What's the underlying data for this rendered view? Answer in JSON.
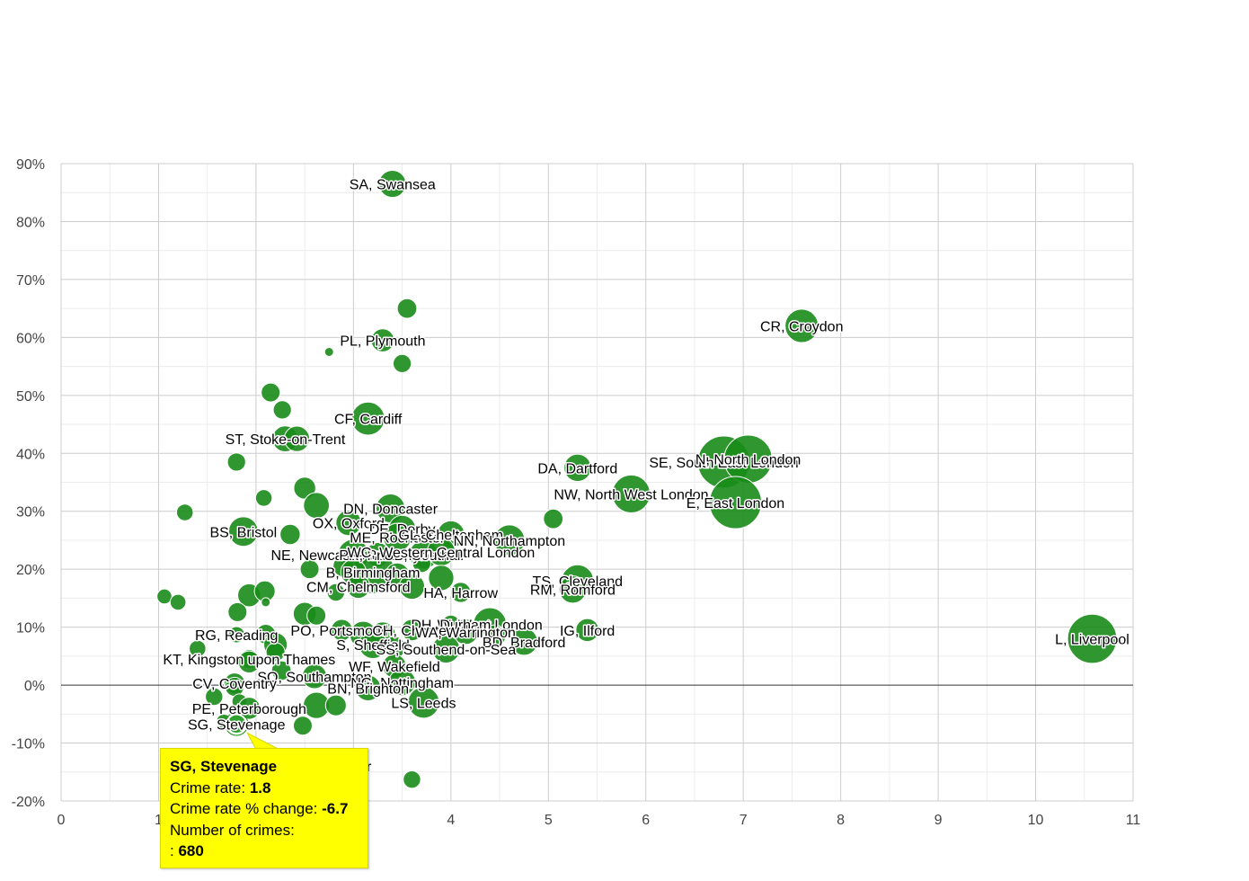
{
  "colors": {
    "bubble": "#1a8c1a",
    "bubble_stroke": "#ffffff",
    "highlight": "#2ea02e",
    "tooltip_bg": "#ffff00",
    "grid_major": "#cccccc",
    "grid_minor": "#ececec",
    "zero_line": "#333333"
  },
  "chart_data": {
    "type": "scatter",
    "title": "",
    "xlabel": "",
    "ylabel": "",
    "xlim": [
      0,
      11
    ],
    "ylim": [
      -20,
      90
    ],
    "x_ticks": [
      "0",
      "1",
      "2",
      "3",
      "4",
      "5",
      "6",
      "7",
      "8",
      "9",
      "10",
      "11"
    ],
    "y_ticks": [
      "-20%",
      "-10%",
      "0%",
      "10%",
      "20%",
      "30%",
      "40%",
      "50%",
      "60%",
      "70%",
      "80%",
      "90%"
    ],
    "grid": true,
    "size_meaning": "Number of crimes",
    "points": [
      {
        "label": "SA, Swansea",
        "x": 3.4,
        "y": 86.5,
        "size": 2600
      },
      {
        "label": "",
        "x": 3.55,
        "y": 65,
        "size": 1100
      },
      {
        "label": "CR, Croydon",
        "x": 7.6,
        "y": 62,
        "size": 4300
      },
      {
        "label": "PL, Plymouth",
        "x": 3.3,
        "y": 59.5,
        "size": 1700
      },
      {
        "label": "",
        "x": 2.75,
        "y": 57.5,
        "size": 250
      },
      {
        "label": "",
        "x": 3.5,
        "y": 55.5,
        "size": 900
      },
      {
        "label": "",
        "x": 2.15,
        "y": 50.5,
        "size": 1000
      },
      {
        "label": "",
        "x": 2.27,
        "y": 47.5,
        "size": 900
      },
      {
        "label": "CF, Cardiff",
        "x": 3.15,
        "y": 46,
        "size": 4200
      },
      {
        "label": "ST, Stoke-on-Trent",
        "x": 2.3,
        "y": 42.5,
        "size": 2300
      },
      {
        "label": "",
        "x": 2.42,
        "y": 42.5,
        "size": 2200
      },
      {
        "label": "",
        "x": 1.8,
        "y": 38.5,
        "size": 900
      },
      {
        "label": "DA, Dartford",
        "x": 5.3,
        "y": 37.5,
        "size": 2600
      },
      {
        "label": "SE, South East London",
        "x": 6.8,
        "y": 38.5,
        "size": 12000
      },
      {
        "label": "N, North London",
        "x": 7.05,
        "y": 39,
        "size": 10000
      },
      {
        "label": "NW, North West London",
        "x": 5.85,
        "y": 33,
        "size": 5800
      },
      {
        "label": "E, East London",
        "x": 6.92,
        "y": 31.5,
        "size": 12000
      },
      {
        "label": "",
        "x": 2.5,
        "y": 34,
        "size": 1500
      },
      {
        "label": "",
        "x": 2.08,
        "y": 32.3,
        "size": 700
      },
      {
        "label": "",
        "x": 2.62,
        "y": 31,
        "size": 2300
      },
      {
        "label": "DN, Doncaster",
        "x": 3.38,
        "y": 30.5,
        "size": 3000
      },
      {
        "label": "",
        "x": 1.27,
        "y": 29.8,
        "size": 700
      },
      {
        "label": "",
        "x": 5.05,
        "y": 28.7,
        "size": 1100
      },
      {
        "label": "OX, Oxford",
        "x": 2.95,
        "y": 28,
        "size": 2200
      },
      {
        "label": "DE, Derby",
        "x": 3.5,
        "y": 27,
        "size": 2500
      },
      {
        "label": "BS, Bristol",
        "x": 1.87,
        "y": 26.5,
        "size": 3200
      },
      {
        "label": "",
        "x": 2.35,
        "y": 26,
        "size": 1200
      },
      {
        "label": "ME, Rochester",
        "x": 3.45,
        "y": 25.5,
        "size": 2800
      },
      {
        "label": "GL, Cheltenham",
        "x": 4.0,
        "y": 26,
        "size": 2600
      },
      {
        "label": "NN, Northampton",
        "x": 4.6,
        "y": 25,
        "size": 3500
      },
      {
        "label": "NE, Newcastle upon Tyne",
        "x": 3.0,
        "y": 22.5,
        "size": 3600
      },
      {
        "label": "PR, Preston",
        "x": 3.25,
        "y": 22.5,
        "size": 2000
      },
      {
        "label": "UB, Southall",
        "x": 3.72,
        "y": 22.5,
        "size": 3000
      },
      {
        "label": "WC, Western Central London",
        "x": 3.9,
        "y": 23,
        "size": 2800
      },
      {
        "label": "",
        "x": 3.7,
        "y": 21,
        "size": 900
      },
      {
        "label": "B, Birmingham",
        "x": 3.2,
        "y": 19.5,
        "size": 8000
      },
      {
        "label": "",
        "x": 2.55,
        "y": 20,
        "size": 1000
      },
      {
        "label": "",
        "x": 2.9,
        "y": 20.5,
        "size": 1400
      },
      {
        "label": "",
        "x": 3.0,
        "y": 19.5,
        "size": 2200
      },
      {
        "label": "",
        "x": 3.45,
        "y": 19,
        "size": 1900
      },
      {
        "label": "TS, Cleveland",
        "x": 5.3,
        "y": 18,
        "size": 3900
      },
      {
        "label": "",
        "x": 3.9,
        "y": 18.5,
        "size": 2200
      },
      {
        "label": "CM, Chelmsford",
        "x": 3.05,
        "y": 17,
        "size": 1800
      },
      {
        "label": "",
        "x": 3.6,
        "y": 17,
        "size": 2200
      },
      {
        "label": "HA, Harrow",
        "x": 4.1,
        "y": 16,
        "size": 1200
      },
      {
        "label": "RM, Romford",
        "x": 5.25,
        "y": 16.5,
        "size": 2600
      },
      {
        "label": "",
        "x": 2.82,
        "y": 16,
        "size": 800
      },
      {
        "label": "",
        "x": 1.06,
        "y": 15.3,
        "size": 500
      },
      {
        "label": "",
        "x": 1.93,
        "y": 15.5,
        "size": 1700
      },
      {
        "label": "",
        "x": 2.09,
        "y": 16.2,
        "size": 1300
      },
      {
        "label": "",
        "x": 1.2,
        "y": 14.3,
        "size": 600
      },
      {
        "label": "",
        "x": 2.1,
        "y": 14.3,
        "size": 300
      },
      {
        "label": "",
        "x": 1.81,
        "y": 12.6,
        "size": 1000
      },
      {
        "label": "",
        "x": 2.5,
        "y": 12.3,
        "size": 1700
      },
      {
        "label": "",
        "x": 2.62,
        "y": 12,
        "size": 1000
      },
      {
        "label": "W, West London",
        "x": 4.4,
        "y": 10.5,
        "size": 4200
      },
      {
        "label": "DH, Durham",
        "x": 4.0,
        "y": 10.5,
        "size": 900
      },
      {
        "label": "PO, Portsmouth",
        "x": 2.88,
        "y": 9.5,
        "size": 1400
      },
      {
        "label": "CH, Chester",
        "x": 3.6,
        "y": 9.5,
        "size": 1400
      },
      {
        "label": "WA, Warrington",
        "x": 4.15,
        "y": 9.2,
        "size": 2200
      },
      {
        "label": "IG, Ilford",
        "x": 5.4,
        "y": 9.5,
        "size": 1700
      },
      {
        "label": "RG, Reading",
        "x": 1.8,
        "y": 8.7,
        "size": 650
      },
      {
        "label": "",
        "x": 2.1,
        "y": 8.8,
        "size": 1100
      },
      {
        "label": "",
        "x": 3.1,
        "y": 8.7,
        "size": 2500
      },
      {
        "label": "",
        "x": 3.3,
        "y": 8.7,
        "size": 2200
      },
      {
        "label": "",
        "x": 4.45,
        "y": 8.5,
        "size": 1500
      },
      {
        "label": "BD, Bradford",
        "x": 4.75,
        "y": 7.5,
        "size": 2600
      },
      {
        "label": "S, Sheffield",
        "x": 3.2,
        "y": 7,
        "size": 2800
      },
      {
        "label": "",
        "x": 2.2,
        "y": 7,
        "size": 1800
      },
      {
        "label": "",
        "x": 1.4,
        "y": 6.3,
        "size": 700
      },
      {
        "label": "",
        "x": 3.42,
        "y": 6.5,
        "size": 1500
      },
      {
        "label": "SS, Southend-on-Sea",
        "x": 3.95,
        "y": 6.2,
        "size": 2700
      },
      {
        "label": "",
        "x": 2.2,
        "y": 5.7,
        "size": 1000
      },
      {
        "label": "KT, Kingston upon Thames",
        "x": 1.93,
        "y": 4.5,
        "size": 1000
      },
      {
        "label": "",
        "x": 1.93,
        "y": 4,
        "size": 1500
      },
      {
        "label": "WF, Wakefield",
        "x": 3.42,
        "y": 3.3,
        "size": 1800
      },
      {
        "label": "",
        "x": 2.26,
        "y": 2.5,
        "size": 1100
      },
      {
        "label": "SO, Southampton",
        "x": 2.6,
        "y": 1.5,
        "size": 2000
      },
      {
        "label": "CV, Coventry",
        "x": 1.78,
        "y": 0.3,
        "size": 1300
      },
      {
        "label": "",
        "x": 1.78,
        "y": -0.3,
        "size": 1000
      },
      {
        "label": "NG, Nottingham",
        "x": 3.5,
        "y": 0.5,
        "size": 2500
      },
      {
        "label": "BN, Brighton",
        "x": 3.15,
        "y": -0.5,
        "size": 2200
      },
      {
        "label": "",
        "x": 1.57,
        "y": -2,
        "size": 800
      },
      {
        "label": "",
        "x": 1.83,
        "y": -2.8,
        "size": 500
      },
      {
        "label": "PE, Peterborough",
        "x": 1.93,
        "y": -4,
        "size": 1500
      },
      {
        "label": "",
        "x": 2.62,
        "y": -3.5,
        "size": 2400
      },
      {
        "label": "",
        "x": 2.82,
        "y": -3.5,
        "size": 1300
      },
      {
        "label": "LS, Leeds",
        "x": 3.72,
        "y": -3,
        "size": 3700
      },
      {
        "label": "",
        "x": 1.67,
        "y": -6.3,
        "size": 500
      },
      {
        "label": "",
        "x": 2.48,
        "y": -7,
        "size": 1000
      },
      {
        "label": "SG, Stevenage",
        "x": 1.8,
        "y": -6.7,
        "size": 680,
        "highlighted": true
      },
      {
        "label": "",
        "x": 3.6,
        "y": -16.3,
        "size": 800
      },
      {
        "label": "L, Liverpool",
        "x": 10.58,
        "y": 8,
        "size": 10500
      }
    ]
  },
  "tooltip": {
    "title": "SG, Stevenage",
    "rate_label": "Crime rate:",
    "rate_value": "1.8",
    "change_label": "Crime rate % change:",
    "change_value": "-6.7",
    "count_label": "Number of crimes:",
    "count_prefix": ":",
    "count_value": "680",
    "behind_text": "r"
  }
}
